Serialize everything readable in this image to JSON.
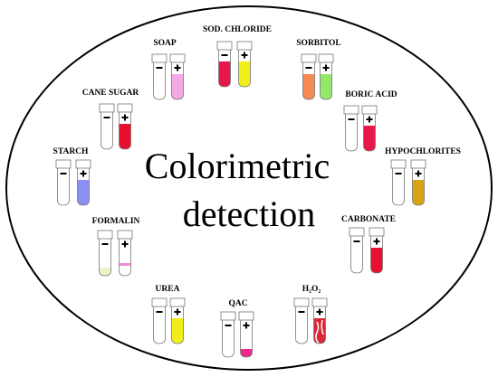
{
  "title": {
    "lines": [
      "Colorimetric",
      "detection"
    ]
  },
  "items": [
    {
      "label": "SOAP",
      "neg_color": "#ffffff",
      "pos_color": "#f5a8e6"
    },
    {
      "label": "SOD. CHLORIDE",
      "neg_color": "#e8174a",
      "pos_color": "#f2ee1a"
    },
    {
      "label": "SORBITOL",
      "neg_color": "#f58a52",
      "pos_color": "#93e868"
    },
    {
      "label": "CANE SUGAR",
      "neg_color": "#ffffff",
      "pos_color": "#e8102e"
    },
    {
      "label": "BORIC ACID",
      "neg_color": "#ffffff",
      "pos_color": "#e8174a"
    },
    {
      "label": "STARCH",
      "neg_color": "#ffffff",
      "pos_color": "#8c8ff2"
    },
    {
      "label": "HYPOCHLORITES",
      "neg_color": "#ffffff",
      "pos_color": "#d9a317"
    },
    {
      "label": "FORMALIN",
      "neg_color": "#eef2c8",
      "pos_color": "#f28ad9"
    },
    {
      "label": "CARBONATE",
      "neg_color": "#ffffff",
      "pos_color": "#e8102e"
    },
    {
      "label": "UREA",
      "neg_color": "#ffffff",
      "pos_color": "#f2ee1a"
    },
    {
      "label": "QAC",
      "neg_color": "#ffffff",
      "pos_color": "#f0288a"
    },
    {
      "label": "H₂O₂",
      "neg_color": "#ffffff",
      "pos_color": "#d9263a"
    }
  ]
}
